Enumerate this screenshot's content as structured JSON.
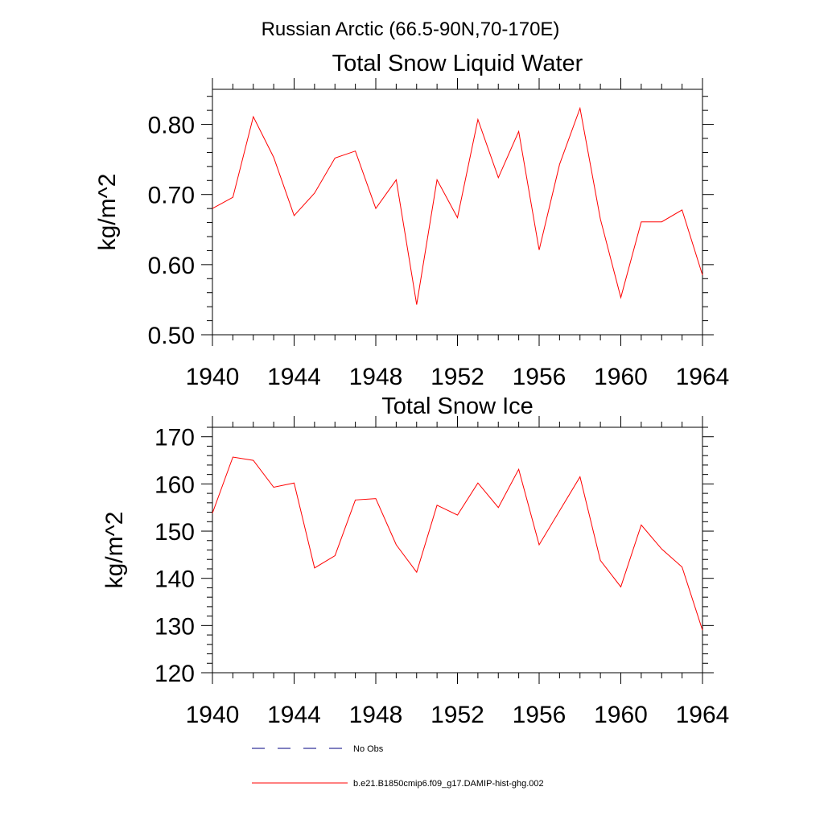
{
  "suptitle": "Russian Arctic (66.5-90N,70-170E)",
  "chart_data": [
    {
      "type": "line",
      "title": "Total Snow Liquid Water",
      "xlabel": "",
      "ylabel": "kg/m^2",
      "xlim": [
        1940,
        1964
      ],
      "ylim": [
        0.5,
        0.85
      ],
      "xticks": [
        1940,
        1944,
        1948,
        1952,
        1956,
        1960,
        1964
      ],
      "yticks": [
        0.5,
        0.6,
        0.7,
        0.8
      ],
      "ytick_labels": [
        "0.50",
        "0.60",
        "0.70",
        "0.80"
      ],
      "grid": false,
      "series": [
        {
          "name": "b.e21.B1850cmip6.f09_g17.DAMIP-hist-ghg.002",
          "color": "#ff0000",
          "x": [
            1940,
            1941,
            1942,
            1943,
            1944,
            1945,
            1946,
            1947,
            1948,
            1949,
            1950,
            1951,
            1952,
            1953,
            1954,
            1955,
            1956,
            1957,
            1958,
            1959,
            1960,
            1961,
            1962,
            1963,
            1964
          ],
          "values": [
            0.68,
            0.696,
            0.811,
            0.753,
            0.67,
            0.702,
            0.752,
            0.762,
            0.68,
            0.721,
            0.543,
            0.721,
            0.667,
            0.807,
            0.724,
            0.79,
            0.621,
            0.743,
            0.823,
            0.665,
            0.553,
            0.661,
            0.661,
            0.678,
            0.585
          ]
        }
      ]
    },
    {
      "type": "line",
      "title": "Total Snow Ice",
      "xlabel": "",
      "ylabel": "kg/m^2",
      "xlim": [
        1940,
        1964
      ],
      "ylim": [
        120,
        172
      ],
      "xticks": [
        1940,
        1944,
        1948,
        1952,
        1956,
        1960,
        1964
      ],
      "yticks": [
        120,
        130,
        140,
        150,
        160,
        170
      ],
      "ytick_labels": [
        "120",
        "130",
        "140",
        "150",
        "160",
        "170"
      ],
      "grid": false,
      "series": [
        {
          "name": "b.e21.B1850cmip6.f09_g17.DAMIP-hist-ghg.002",
          "color": "#ff0000",
          "x": [
            1940,
            1941,
            1942,
            1943,
            1944,
            1945,
            1946,
            1947,
            1948,
            1949,
            1950,
            1951,
            1952,
            1953,
            1954,
            1955,
            1956,
            1957,
            1958,
            1959,
            1960,
            1961,
            1962,
            1963,
            1964
          ],
          "values": [
            153.8,
            165.7,
            165.0,
            159.3,
            160.2,
            142.2,
            144.8,
            156.6,
            156.9,
            147.1,
            141.3,
            155.5,
            153.4,
            160.2,
            155.0,
            163.1,
            147.1,
            154.3,
            161.5,
            143.8,
            138.2,
            151.3,
            146.2,
            142.4,
            129.0
          ]
        }
      ]
    }
  ],
  "legend": {
    "placement": "bottom",
    "entries": [
      {
        "label": "No Obs",
        "style": "dashed",
        "color": "#000080"
      },
      {
        "label": "b.e21.B1850cmip6.f09_g17.DAMIP-hist-ghg.002",
        "style": "solid",
        "color": "#ff0000"
      }
    ]
  }
}
